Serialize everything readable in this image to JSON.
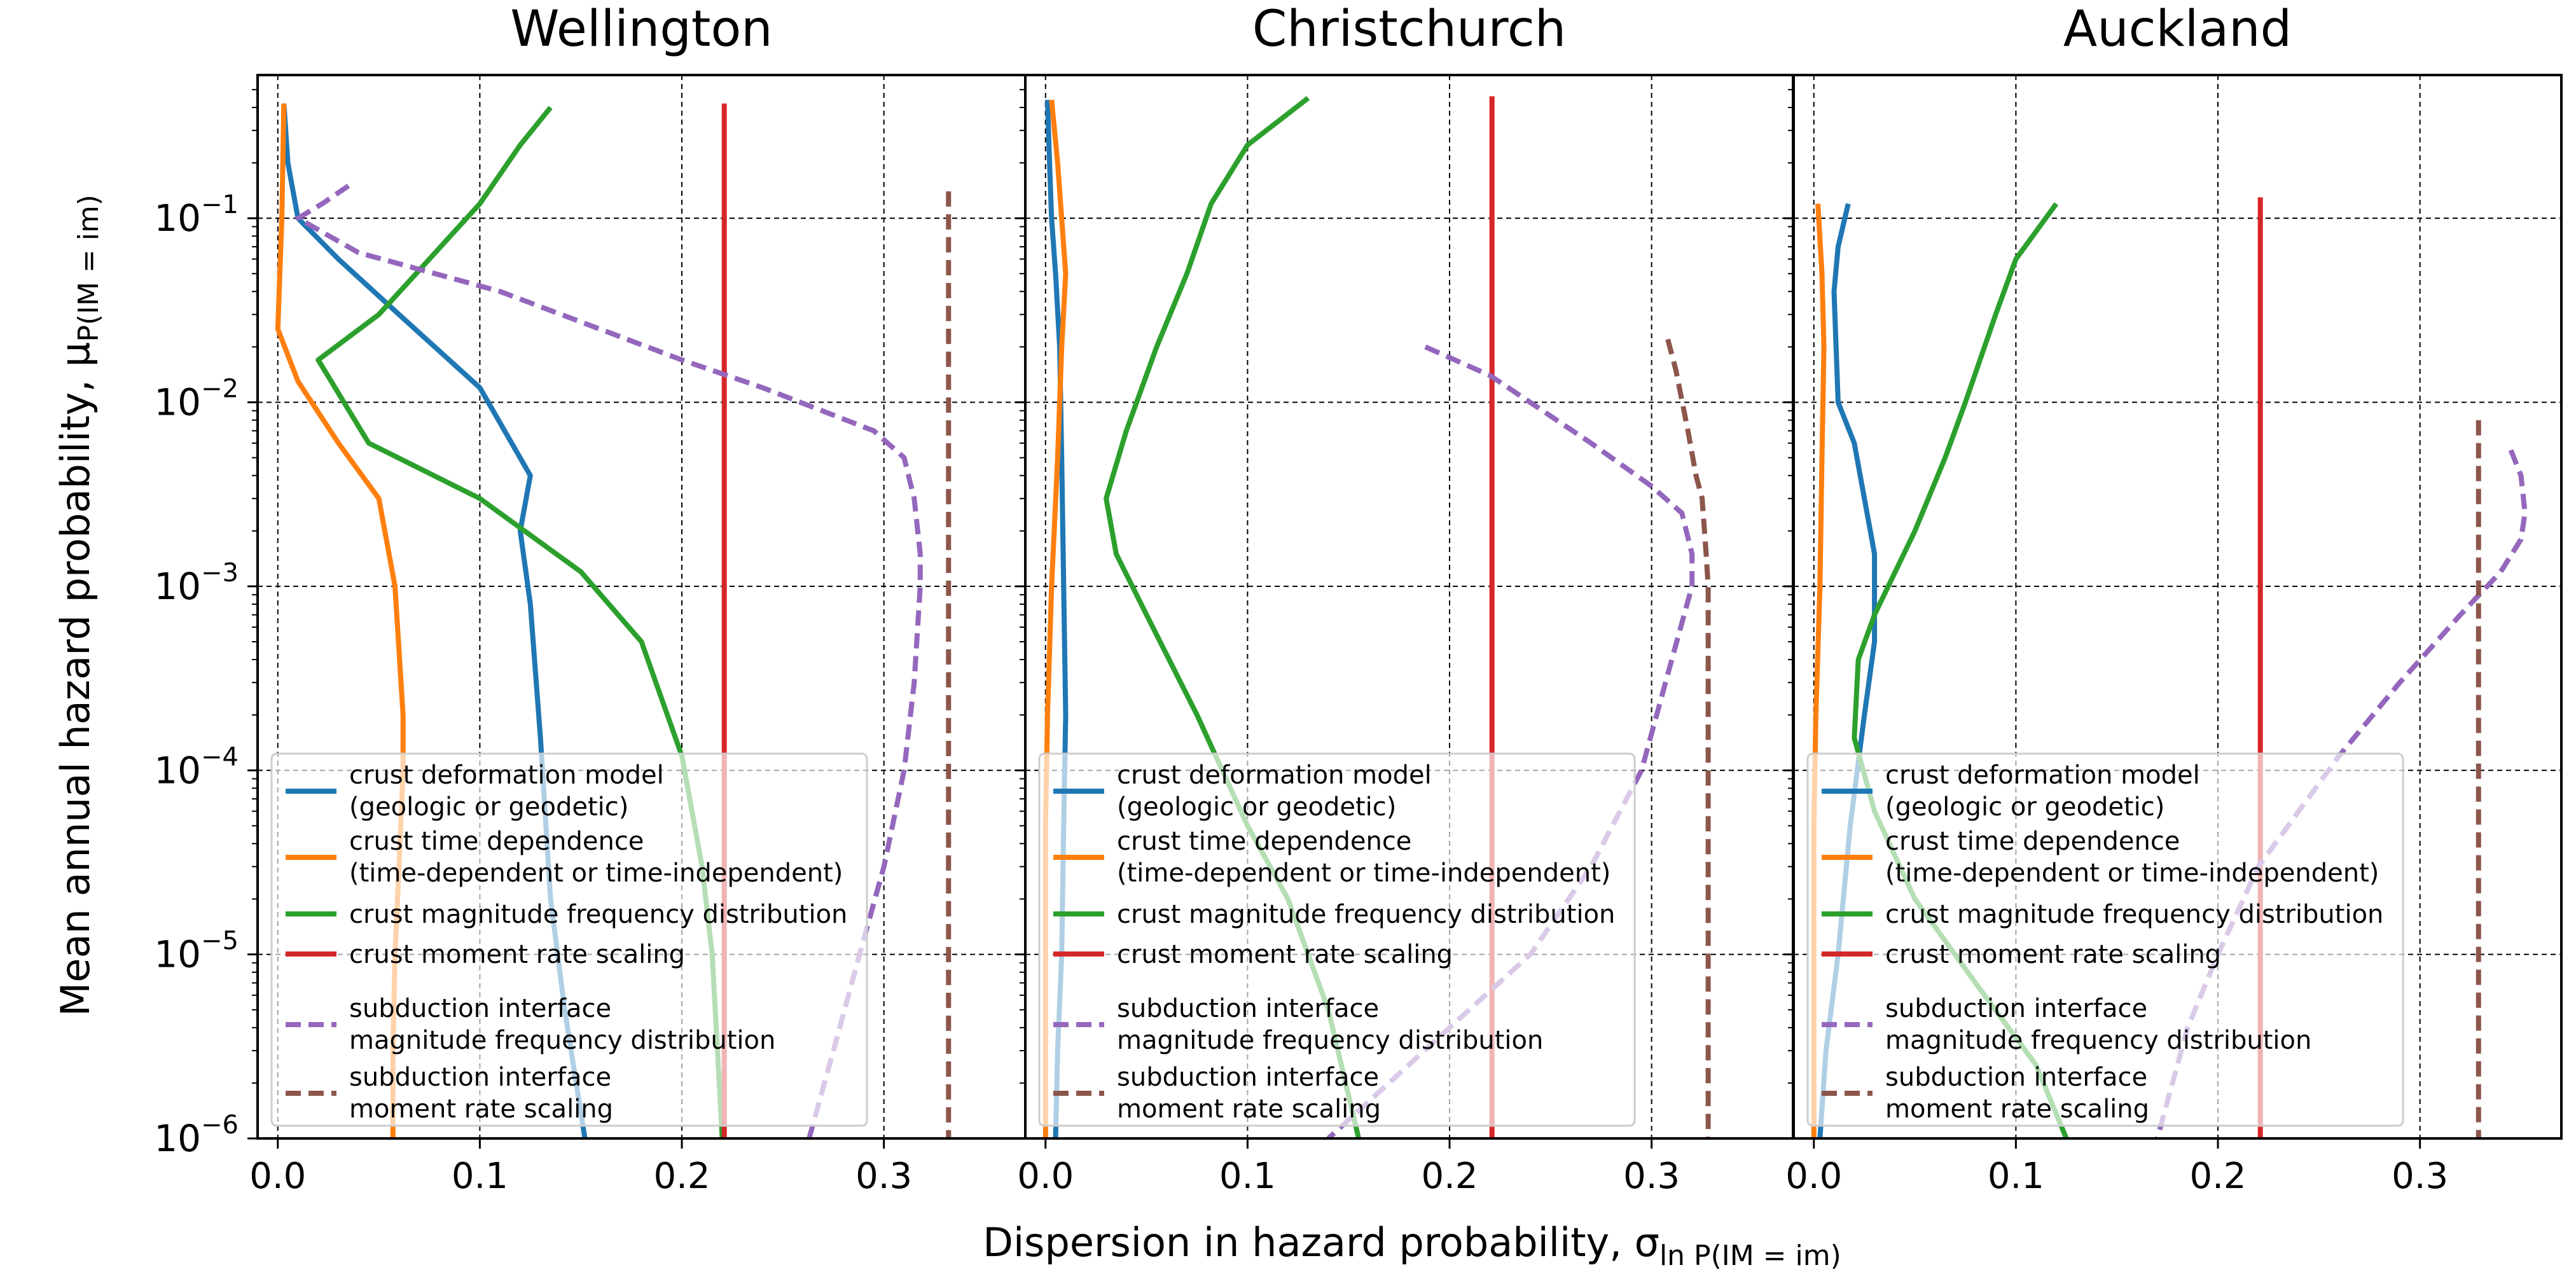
{
  "figure": {
    "ylabel": "Mean annual hazard probability, μ",
    "ylabel_sub": "P(IM = im)",
    "xlabel": "Dispersion in hazard probability, σ",
    "xlabel_sub": "ln P(IM = im)"
  },
  "legend": [
    {
      "key": "crust_dm",
      "lines": [
        "crust deformation model",
        "(geologic or geodetic)"
      ],
      "color": "#1f77b4",
      "dash": false
    },
    {
      "key": "crust_td",
      "lines": [
        "crust time dependence",
        "(time-dependent or time-independent)"
      ],
      "color": "#ff7f0e",
      "dash": false
    },
    {
      "key": "crust_mfd",
      "lines": [
        "crust magnitude frequency distribution"
      ],
      "color": "#2ca02c",
      "dash": false
    },
    {
      "key": "crust_mrs",
      "lines": [
        "crust moment rate scaling"
      ],
      "color": "#d62728",
      "dash": false
    },
    {
      "key": "sub_mfd",
      "lines": [
        "subduction interface",
        " magnitude frequency distribution"
      ],
      "color": "#9467bd",
      "dash": true
    },
    {
      "key": "sub_mrs",
      "lines": [
        "subduction interface",
        " moment rate scaling"
      ],
      "color": "#8c564b",
      "dash": true
    }
  ],
  "chart_data": [
    {
      "type": "line",
      "title": "Wellington",
      "xlim": [
        -0.01,
        0.37
      ],
      "ylim": [
        1e-06,
        0.6
      ],
      "yscale": "log",
      "xticks": [
        "0.0",
        "0.1",
        "0.2",
        "0.3"
      ],
      "yticks": [
        "10^-1",
        "10^-2",
        "10^-3",
        "10^-4",
        "10^-5",
        "10^-6"
      ],
      "grid": true,
      "legend_position": "lower-left",
      "series": [
        {
          "key": "crust_dm",
          "name": "crust deformation model (geologic or geodetic)",
          "points": [
            [
              0.003,
              0.42
            ],
            [
              0.005,
              0.2
            ],
            [
              0.01,
              0.1
            ],
            [
              0.03,
              0.06
            ],
            [
              0.06,
              0.03
            ],
            [
              0.1,
              0.012
            ],
            [
              0.125,
              0.004
            ],
            [
              0.12,
              0.002
            ],
            [
              0.125,
              0.0008
            ],
            [
              0.13,
              0.00015
            ],
            [
              0.135,
              2e-05
            ],
            [
              0.142,
              5e-06
            ],
            [
              0.152,
              1e-06
            ]
          ]
        },
        {
          "key": "crust_td",
          "name": "crust time dependence (time-dependent or time-independent)",
          "points": [
            [
              0.003,
              0.42
            ],
            [
              0.002,
              0.1
            ],
            [
              0.0,
              0.025
            ],
            [
              0.01,
              0.013
            ],
            [
              0.03,
              0.006
            ],
            [
              0.05,
              0.003
            ],
            [
              0.058,
              0.001
            ],
            [
              0.062,
              0.0002
            ],
            [
              0.062,
              0.0001
            ],
            [
              0.06,
              3e-05
            ],
            [
              0.058,
              1e-05
            ],
            [
              0.057,
              3e-06
            ],
            [
              0.057,
              1e-06
            ]
          ]
        },
        {
          "key": "crust_mfd",
          "name": "crust magnitude frequency distribution",
          "points": [
            [
              0.135,
              0.4
            ],
            [
              0.12,
              0.25
            ],
            [
              0.1,
              0.12
            ],
            [
              0.075,
              0.06
            ],
            [
              0.05,
              0.03
            ],
            [
              0.02,
              0.017
            ],
            [
              0.045,
              0.006
            ],
            [
              0.1,
              0.003
            ],
            [
              0.15,
              0.0012
            ],
            [
              0.18,
              0.0005
            ],
            [
              0.2,
              0.00012
            ],
            [
              0.21,
              3e-05
            ],
            [
              0.215,
              1e-05
            ],
            [
              0.22,
              1e-06
            ]
          ]
        },
        {
          "key": "crust_mrs",
          "name": "crust moment rate scaling",
          "points": [
            [
              0.221,
              0.42
            ],
            [
              0.221,
              1e-06
            ]
          ]
        },
        {
          "key": "sub_mfd",
          "name": "subduction interface magnitude frequency distribution",
          "points": [
            [
              0.035,
              0.15
            ],
            [
              0.022,
              0.12
            ],
            [
              0.01,
              0.1
            ],
            [
              0.04,
              0.065
            ],
            [
              0.11,
              0.04
            ],
            [
              0.2,
              0.017
            ],
            [
              0.24,
              0.012
            ],
            [
              0.295,
              0.007
            ],
            [
              0.31,
              0.005
            ],
            [
              0.315,
              0.003
            ],
            [
              0.318,
              0.0015
            ],
            [
              0.318,
              0.001
            ],
            [
              0.315,
              0.0003
            ],
            [
              0.31,
              0.0001
            ],
            [
              0.3,
              3e-05
            ],
            [
              0.288,
              1e-05
            ],
            [
              0.275,
              3e-06
            ],
            [
              0.263,
              1e-06
            ]
          ]
        },
        {
          "key": "sub_mrs",
          "name": "subduction interface moment rate scaling",
          "points": [
            [
              0.332,
              0.14
            ],
            [
              0.332,
              1e-06
            ]
          ]
        }
      ]
    },
    {
      "type": "line",
      "title": "Christchurch",
      "xlim": [
        -0.01,
        0.37
      ],
      "ylim": [
        1e-06,
        0.6
      ],
      "yscale": "log",
      "xticks": [
        "0.0",
        "0.1",
        "0.2",
        "0.3"
      ],
      "yticks": [],
      "grid": true,
      "legend_position": "lower-left",
      "series": [
        {
          "key": "crust_dm",
          "name": "crust deformation model (geologic or geodetic)",
          "points": [
            [
              0.001,
              0.44
            ],
            [
              0.002,
              0.2
            ],
            [
              0.003,
              0.1
            ],
            [
              0.005,
              0.05
            ],
            [
              0.007,
              0.02
            ],
            [
              0.008,
              0.005
            ],
            [
              0.009,
              0.001
            ],
            [
              0.01,
              0.0002
            ],
            [
              0.009,
              5e-05
            ],
            [
              0.008,
              1e-05
            ],
            [
              0.006,
              3e-06
            ],
            [
              0.005,
              1e-06
            ]
          ]
        },
        {
          "key": "crust_td",
          "name": "crust time dependence (time-dependent or time-independent)",
          "points": [
            [
              0.003,
              0.44
            ],
            [
              0.006,
              0.2
            ],
            [
              0.01,
              0.05
            ],
            [
              0.008,
              0.02
            ],
            [
              0.006,
              0.005
            ],
            [
              0.003,
              0.001
            ],
            [
              0.001,
              0.0002
            ],
            [
              0.0,
              5e-05
            ],
            [
              0.0,
              1e-05
            ],
            [
              0.0,
              1e-06
            ]
          ]
        },
        {
          "key": "crust_mfd",
          "name": "crust magnitude frequency distribution",
          "points": [
            [
              0.13,
              0.45
            ],
            [
              0.1,
              0.25
            ],
            [
              0.082,
              0.12
            ],
            [
              0.07,
              0.05
            ],
            [
              0.055,
              0.02
            ],
            [
              0.04,
              0.007
            ],
            [
              0.03,
              0.003
            ],
            [
              0.035,
              0.0015
            ],
            [
              0.05,
              0.0007
            ],
            [
              0.075,
              0.0002
            ],
            [
              0.1,
              5e-05
            ],
            [
              0.12,
              2e-05
            ],
            [
              0.14,
              5e-06
            ],
            [
              0.155,
              1e-06
            ]
          ]
        },
        {
          "key": "crust_mrs",
          "name": "crust moment rate scaling",
          "points": [
            [
              0.221,
              0.46
            ],
            [
              0.221,
              1e-06
            ]
          ]
        },
        {
          "key": "sub_mfd",
          "name": "subduction interface magnitude frequency distribution",
          "points": [
            [
              0.188,
              0.02
            ],
            [
              0.22,
              0.014
            ],
            [
              0.27,
              0.006
            ],
            [
              0.3,
              0.0035
            ],
            [
              0.315,
              0.0025
            ],
            [
              0.32,
              0.0015
            ],
            [
              0.32,
              0.001
            ],
            [
              0.31,
              0.0004
            ],
            [
              0.295,
              0.0001
            ],
            [
              0.27,
              3e-05
            ],
            [
              0.24,
              1e-05
            ],
            [
              0.2,
              4e-06
            ],
            [
              0.17,
              2e-06
            ],
            [
              0.14,
              1e-06
            ]
          ]
        },
        {
          "key": "sub_mrs",
          "name": "subduction interface moment rate scaling",
          "points": [
            [
              0.308,
              0.022
            ],
            [
              0.312,
              0.015
            ],
            [
              0.318,
              0.007
            ],
            [
              0.322,
              0.004
            ],
            [
              0.325,
              0.003
            ],
            [
              0.327,
              0.0015
            ],
            [
              0.328,
              0.001
            ],
            [
              0.328,
              1e-06
            ]
          ]
        }
      ]
    },
    {
      "type": "line",
      "title": "Auckland",
      "xlim": [
        -0.01,
        0.37
      ],
      "ylim": [
        1e-06,
        0.6
      ],
      "yscale": "log",
      "xticks": [
        "0.0",
        "0.1",
        "0.2",
        "0.3"
      ],
      "yticks": [],
      "grid": true,
      "legend_position": "lower-left",
      "series": [
        {
          "key": "crust_dm",
          "name": "crust deformation model (geologic or geodetic)",
          "points": [
            [
              0.017,
              0.12
            ],
            [
              0.012,
              0.07
            ],
            [
              0.01,
              0.04
            ],
            [
              0.012,
              0.01
            ],
            [
              0.02,
              0.006
            ],
            [
              0.025,
              0.003
            ],
            [
              0.03,
              0.0015
            ],
            [
              0.03,
              0.0005
            ],
            [
              0.025,
              0.0002
            ],
            [
              0.018,
              5e-05
            ],
            [
              0.012,
              1e-05
            ],
            [
              0.006,
              3e-06
            ],
            [
              0.003,
              1e-06
            ]
          ]
        },
        {
          "key": "crust_td",
          "name": "crust time dependence (time-dependent or time-independent)",
          "points": [
            [
              0.002,
              0.12
            ],
            [
              0.004,
              0.05
            ],
            [
              0.005,
              0.02
            ],
            [
              0.004,
              0.005
            ],
            [
              0.003,
              0.001
            ],
            [
              0.001,
              0.0002
            ],
            [
              0.0,
              5e-05
            ],
            [
              0.0,
              1e-06
            ]
          ]
        },
        {
          "key": "crust_mfd",
          "name": "crust magnitude frequency distribution",
          "points": [
            [
              0.12,
              0.12
            ],
            [
              0.1,
              0.06
            ],
            [
              0.09,
              0.03
            ],
            [
              0.075,
              0.01
            ],
            [
              0.065,
              0.005
            ],
            [
              0.05,
              0.002
            ],
            [
              0.03,
              0.0007
            ],
            [
              0.022,
              0.0004
            ],
            [
              0.02,
              0.00015
            ],
            [
              0.03,
              6e-05
            ],
            [
              0.05,
              2e-05
            ],
            [
              0.08,
              7e-06
            ],
            [
              0.11,
              2.5e-06
            ],
            [
              0.125,
              1e-06
            ]
          ]
        },
        {
          "key": "crust_mrs",
          "name": "crust moment rate scaling",
          "points": [
            [
              0.221,
              0.13
            ],
            [
              0.221,
              1e-06
            ]
          ]
        },
        {
          "key": "sub_mfd",
          "name": "subduction interface magnitude frequency distribution",
          "points": [
            [
              0.345,
              0.0055
            ],
            [
              0.35,
              0.004
            ],
            [
              0.352,
              0.0025
            ],
            [
              0.35,
              0.0018
            ],
            [
              0.34,
              0.0012
            ],
            [
              0.32,
              0.0007
            ],
            [
              0.29,
              0.0003
            ],
            [
              0.26,
              0.00012
            ],
            [
              0.22,
              3e-05
            ],
            [
              0.2,
              1e-05
            ],
            [
              0.185,
              4e-06
            ],
            [
              0.17,
              1e-06
            ]
          ]
        },
        {
          "key": "sub_mrs",
          "name": "subduction interface moment rate scaling",
          "points": [
            [
              0.329,
              0.008
            ],
            [
              0.329,
              1e-06
            ]
          ]
        }
      ]
    }
  ]
}
